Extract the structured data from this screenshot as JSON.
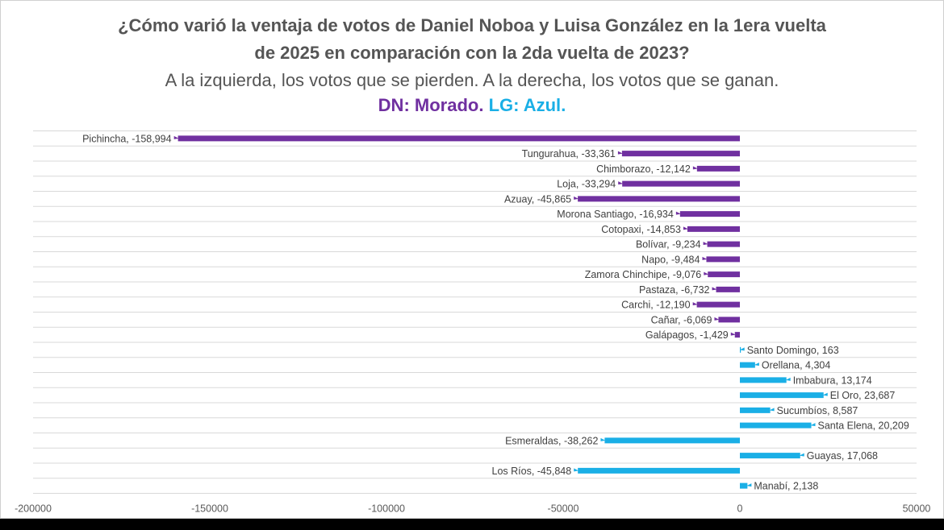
{
  "title_line1": "¿Cómo varió la ventaja de votos de Daniel Noboa y Luisa González en la 1era vuelta",
  "title_line2": "de 2025 en comparación con la 2da vuelta de 2023?",
  "subtitle": "A la izquierda, los votos que se pierden. A la derecha, los votos que se ganan.",
  "legend": {
    "dn_label": "DN: Morado",
    "sep": ". ",
    "lg_label": "LG: Azul",
    "end": "."
  },
  "colors": {
    "dn": "#7030A0",
    "lg": "#1AAFE6",
    "title": "#555555",
    "grid": "#d9d9d9"
  },
  "chart_data": {
    "type": "bar",
    "orientation": "horizontal",
    "xlim": [
      -200000,
      50000
    ],
    "x_ticks": [
      -200000,
      -150000,
      -100000,
      -50000,
      0,
      50000
    ],
    "x_tick_labels": [
      "-200000",
      "-150000",
      "-100000",
      "-50000",
      "0",
      "50000"
    ],
    "grid": true,
    "series": [
      {
        "color_key": "dn",
        "categories": [
          "Pichincha",
          "Tungurahua",
          "Chimborazo",
          "Loja",
          "Azuay",
          "Morona Santiago",
          "Cotopaxi",
          "Bolívar",
          "Napo",
          "Zamora Chinchipe",
          "Pastaza",
          "Carchi",
          "Cañar",
          "Galápagos"
        ],
        "values": [
          -158994,
          -33361,
          -12142,
          -33294,
          -45865,
          -16934,
          -14853,
          -9234,
          -9484,
          -9076,
          -6732,
          -12190,
          -6069,
          -1429
        ],
        "data_labels": [
          "Pichincha, -158,994",
          "Tungurahua, -33,361",
          "Chimborazo, -12,142",
          "Loja, -33,294",
          "Azuay, -45,865",
          "Morona Santiago, -16,934",
          "Cotopaxi, -14,853",
          "Bolívar, -9,234",
          "Napo, -9,484",
          "Zamora Chinchipe, -9,076",
          "Pastaza, -6,732",
          "Carchi, -12,190",
          "Cañar, -6,069",
          "Galápagos, -1,429"
        ]
      },
      {
        "color_key": "lg",
        "categories": [
          "Santo Domingo",
          "Orellana",
          "Imbabura",
          "El Oro",
          "Sucumbíos",
          "Santa Elena",
          "Esmeraldas",
          "Guayas",
          "Los Ríos",
          "Manabí"
        ],
        "values": [
          163,
          4304,
          13174,
          23687,
          8587,
          20209,
          -38262,
          17068,
          -45848,
          2138
        ],
        "data_labels": [
          "Santo Domingo, 163",
          "Orellana, 4,304",
          "Imbabura, 13,174",
          "El Oro, 23,687",
          "Sucumbíos, 8,587",
          "Santa Elena, 20,209",
          "Esmeraldas, -38,262",
          "Guayas, 17,068",
          "Los Ríos, -45,848",
          "Manabí, 2,138"
        ]
      }
    ]
  }
}
